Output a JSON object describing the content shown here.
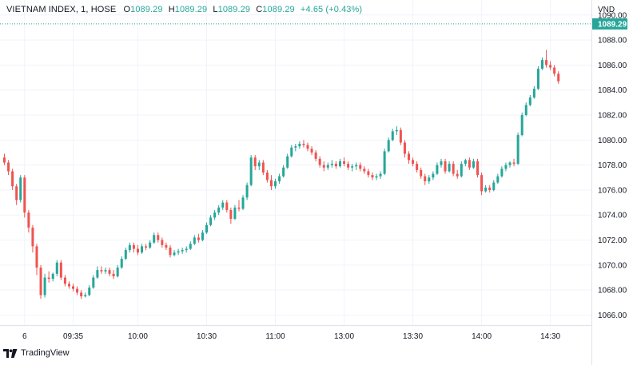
{
  "header": {
    "symbol": "VIETNAM INDEX, 1, HOSE",
    "open_label": "O",
    "open": "1089.29",
    "high_label": "H",
    "high": "1089.29",
    "low_label": "L",
    "low": "1089.29",
    "close_label": "C",
    "close": "1089.29",
    "change": "+4.65 (+0.43%)"
  },
  "currency": "VND",
  "brand": "TradingView",
  "last_price_label": "1089.29",
  "colors": {
    "up": "#26a69a",
    "down": "#ef5350",
    "grid": "#f0f3fa",
    "text": "#131722"
  },
  "chart_data": {
    "type": "candlestick",
    "last_price": 1089.29,
    "ylim": [
      1065.2,
      1091.2
    ],
    "y_ticks": [
      1066,
      1068,
      1070,
      1072,
      1074,
      1076,
      1078,
      1080,
      1082,
      1084,
      1086,
      1088,
      1090
    ],
    "x_tick_labels": [
      "6",
      "09:35",
      "10:00",
      "10:30",
      "11:00",
      "13:00",
      "13:30",
      "14:00",
      "14:30"
    ],
    "x_tick_index": [
      5,
      17,
      33,
      50,
      67,
      84,
      101,
      118,
      135
    ],
    "grid": true,
    "candles": [
      [
        1078.6,
        1078.9,
        1078.0,
        1078.2
      ],
      [
        1078.2,
        1078.4,
        1077.2,
        1077.5
      ],
      [
        1077.5,
        1077.7,
        1076.0,
        1076.3
      ],
      [
        1076.3,
        1076.5,
        1074.8,
        1075.2
      ],
      [
        1075.2,
        1077.2,
        1075.0,
        1077.0
      ],
      [
        1077.0,
        1077.2,
        1073.8,
        1074.2
      ],
      [
        1074.2,
        1074.4,
        1072.6,
        1073.0
      ],
      [
        1073.0,
        1073.2,
        1071.0,
        1071.5
      ],
      [
        1071.5,
        1071.7,
        1069.2,
        1069.8
      ],
      [
        1069.8,
        1070.0,
        1067.3,
        1067.6
      ],
      [
        1067.6,
        1069.3,
        1067.4,
        1069.0
      ],
      [
        1069.0,
        1069.5,
        1068.6,
        1068.9
      ],
      [
        1068.9,
        1069.4,
        1068.7,
        1069.3
      ],
      [
        1069.3,
        1070.4,
        1069.1,
        1070.2
      ],
      [
        1070.2,
        1070.4,
        1068.8,
        1069.0
      ],
      [
        1069.0,
        1069.2,
        1068.3,
        1068.5
      ],
      [
        1068.5,
        1068.7,
        1068.1,
        1068.3
      ],
      [
        1068.3,
        1068.5,
        1067.9,
        1068.1
      ],
      [
        1068.1,
        1068.3,
        1067.6,
        1067.8
      ],
      [
        1067.8,
        1068.0,
        1067.3,
        1067.5
      ],
      [
        1067.5,
        1067.8,
        1067.4,
        1067.6
      ],
      [
        1067.6,
        1068.4,
        1067.5,
        1068.2
      ],
      [
        1068.2,
        1069.2,
        1068.1,
        1069.0
      ],
      [
        1069.0,
        1069.9,
        1068.9,
        1069.6
      ],
      [
        1069.6,
        1069.9,
        1069.3,
        1069.5
      ],
      [
        1069.5,
        1069.8,
        1069.3,
        1069.6
      ],
      [
        1069.6,
        1069.8,
        1069.1,
        1069.3
      ],
      [
        1069.3,
        1069.6,
        1068.9,
        1069.1
      ],
      [
        1069.1,
        1070.0,
        1069.0,
        1069.8
      ],
      [
        1069.8,
        1070.7,
        1069.7,
        1070.5
      ],
      [
        1070.5,
        1071.4,
        1070.4,
        1071.2
      ],
      [
        1071.2,
        1071.8,
        1071.0,
        1071.6
      ],
      [
        1071.6,
        1071.8,
        1071.0,
        1071.3
      ],
      [
        1071.3,
        1071.6,
        1070.8,
        1071.0
      ],
      [
        1071.0,
        1071.7,
        1070.9,
        1071.5
      ],
      [
        1071.5,
        1071.7,
        1071.2,
        1071.4
      ],
      [
        1071.4,
        1072.0,
        1071.3,
        1071.8
      ],
      [
        1071.8,
        1072.6,
        1071.7,
        1072.4
      ],
      [
        1072.4,
        1072.6,
        1071.8,
        1072.0
      ],
      [
        1072.0,
        1072.2,
        1071.4,
        1071.6
      ],
      [
        1071.6,
        1071.8,
        1071.2,
        1071.4
      ],
      [
        1071.4,
        1071.6,
        1070.6,
        1070.8
      ],
      [
        1070.8,
        1071.2,
        1070.7,
        1071.0
      ],
      [
        1071.0,
        1071.3,
        1070.8,
        1071.1
      ],
      [
        1071.1,
        1071.4,
        1070.9,
        1071.2
      ],
      [
        1071.2,
        1071.5,
        1071.0,
        1071.3
      ],
      [
        1071.3,
        1071.9,
        1071.2,
        1071.7
      ],
      [
        1071.7,
        1072.4,
        1071.6,
        1072.2
      ],
      [
        1072.2,
        1072.5,
        1071.8,
        1072.0
      ],
      [
        1072.0,
        1072.8,
        1071.9,
        1072.6
      ],
      [
        1072.6,
        1073.4,
        1072.5,
        1073.2
      ],
      [
        1073.2,
        1074.0,
        1073.1,
        1073.8
      ],
      [
        1073.8,
        1074.4,
        1073.6,
        1074.2
      ],
      [
        1074.2,
        1074.8,
        1074.0,
        1074.6
      ],
      [
        1074.6,
        1075.2,
        1074.4,
        1075.0
      ],
      [
        1075.0,
        1075.2,
        1074.2,
        1074.4
      ],
      [
        1074.4,
        1074.6,
        1073.3,
        1073.7
      ],
      [
        1073.7,
        1074.8,
        1073.6,
        1074.6
      ],
      [
        1074.6,
        1075.2,
        1074.3,
        1074.5
      ],
      [
        1074.5,
        1075.6,
        1074.4,
        1075.4
      ],
      [
        1075.4,
        1076.6,
        1075.2,
        1076.4
      ],
      [
        1076.4,
        1078.8,
        1076.3,
        1078.6
      ],
      [
        1078.6,
        1078.8,
        1077.6,
        1077.9
      ],
      [
        1077.9,
        1078.4,
        1077.6,
        1078.2
      ],
      [
        1078.2,
        1078.4,
        1077.2,
        1077.4
      ],
      [
        1077.4,
        1077.6,
        1076.6,
        1076.8
      ],
      [
        1076.8,
        1077.2,
        1076.0,
        1076.3
      ],
      [
        1076.3,
        1076.9,
        1076.1,
        1076.7
      ],
      [
        1076.7,
        1077.3,
        1076.5,
        1077.1
      ],
      [
        1077.1,
        1078.0,
        1077.0,
        1077.8
      ],
      [
        1077.8,
        1078.9,
        1077.7,
        1078.7
      ],
      [
        1078.7,
        1079.6,
        1078.6,
        1079.4
      ],
      [
        1079.4,
        1079.7,
        1079.1,
        1079.5
      ],
      [
        1079.5,
        1079.9,
        1079.3,
        1079.7
      ],
      [
        1079.7,
        1080.0,
        1079.4,
        1079.6
      ],
      [
        1079.6,
        1079.8,
        1079.1,
        1079.3
      ],
      [
        1079.3,
        1079.5,
        1078.8,
        1079.0
      ],
      [
        1079.0,
        1079.2,
        1078.3,
        1078.5
      ],
      [
        1078.5,
        1078.7,
        1077.8,
        1078.0
      ],
      [
        1078.0,
        1078.3,
        1077.5,
        1077.8
      ],
      [
        1077.8,
        1078.2,
        1077.6,
        1078.0
      ],
      [
        1078.0,
        1078.4,
        1077.8,
        1078.1
      ],
      [
        1078.1,
        1078.3,
        1077.7,
        1077.9
      ],
      [
        1077.9,
        1078.5,
        1077.8,
        1078.3
      ],
      [
        1078.3,
        1078.6,
        1077.9,
        1078.1
      ],
      [
        1078.1,
        1078.3,
        1077.6,
        1077.8
      ],
      [
        1077.8,
        1078.1,
        1077.5,
        1077.9
      ],
      [
        1077.9,
        1078.2,
        1077.6,
        1078.0
      ],
      [
        1078.0,
        1078.2,
        1077.5,
        1077.7
      ],
      [
        1077.7,
        1077.9,
        1077.3,
        1077.5
      ],
      [
        1077.5,
        1077.7,
        1077.0,
        1077.2
      ],
      [
        1077.2,
        1077.4,
        1076.8,
        1077.0
      ],
      [
        1077.0,
        1077.3,
        1076.8,
        1077.1
      ],
      [
        1077.1,
        1077.5,
        1076.9,
        1077.3
      ],
      [
        1077.3,
        1079.3,
        1077.2,
        1079.1
      ],
      [
        1079.1,
        1080.2,
        1079.0,
        1080.0
      ],
      [
        1080.0,
        1080.9,
        1079.9,
        1080.7
      ],
      [
        1080.7,
        1081.1,
        1080.4,
        1080.8
      ],
      [
        1080.8,
        1081.0,
        1079.6,
        1079.8
      ],
      [
        1079.8,
        1080.0,
        1078.6,
        1078.9
      ],
      [
        1078.9,
        1079.1,
        1078.1,
        1078.4
      ],
      [
        1078.4,
        1078.6,
        1077.9,
        1078.1
      ],
      [
        1078.1,
        1078.3,
        1077.4,
        1077.6
      ],
      [
        1077.6,
        1077.8,
        1076.9,
        1077.1
      ],
      [
        1077.1,
        1077.3,
        1076.4,
        1076.7
      ],
      [
        1076.7,
        1077.2,
        1076.5,
        1077.0
      ],
      [
        1077.0,
        1077.5,
        1076.8,
        1077.3
      ],
      [
        1077.3,
        1078.2,
        1077.2,
        1078.0
      ],
      [
        1078.0,
        1078.5,
        1077.8,
        1078.3
      ],
      [
        1078.3,
        1078.5,
        1077.3,
        1077.5
      ],
      [
        1077.5,
        1078.3,
        1077.4,
        1078.1
      ],
      [
        1078.1,
        1078.3,
        1077.1,
        1077.3
      ],
      [
        1077.3,
        1077.6,
        1076.9,
        1077.1
      ],
      [
        1077.1,
        1078.3,
        1077.0,
        1078.1
      ],
      [
        1078.1,
        1078.5,
        1077.9,
        1078.4
      ],
      [
        1078.4,
        1078.6,
        1077.6,
        1077.8
      ],
      [
        1077.8,
        1078.5,
        1077.7,
        1078.3
      ],
      [
        1078.3,
        1078.5,
        1077.0,
        1077.2
      ],
      [
        1077.2,
        1077.4,
        1075.6,
        1075.9
      ],
      [
        1075.9,
        1076.4,
        1075.8,
        1076.2
      ],
      [
        1076.2,
        1076.4,
        1075.8,
        1076.0
      ],
      [
        1076.0,
        1076.8,
        1075.9,
        1076.6
      ],
      [
        1076.6,
        1077.3,
        1076.5,
        1077.1
      ],
      [
        1077.1,
        1077.9,
        1077.0,
        1077.7
      ],
      [
        1077.7,
        1078.2,
        1077.5,
        1078.0
      ],
      [
        1078.0,
        1078.3,
        1077.8,
        1078.2
      ],
      [
        1078.2,
        1078.5,
        1077.9,
        1078.1
      ],
      [
        1078.1,
        1080.6,
        1078.0,
        1080.4
      ],
      [
        1080.4,
        1082.2,
        1080.3,
        1082.0
      ],
      [
        1082.0,
        1083.0,
        1081.9,
        1082.8
      ],
      [
        1082.8,
        1083.6,
        1082.7,
        1083.4
      ],
      [
        1083.4,
        1084.3,
        1083.3,
        1084.1
      ],
      [
        1084.1,
        1085.9,
        1084.0,
        1085.7
      ],
      [
        1085.7,
        1086.6,
        1085.6,
        1086.4
      ],
      [
        1086.4,
        1087.2,
        1085.8,
        1086.0
      ],
      [
        1086.0,
        1086.3,
        1085.6,
        1085.8
      ],
      [
        1085.8,
        1086.0,
        1085.1,
        1085.3
      ],
      [
        1085.3,
        1085.5,
        1084.5,
        1084.7
      ]
    ]
  }
}
